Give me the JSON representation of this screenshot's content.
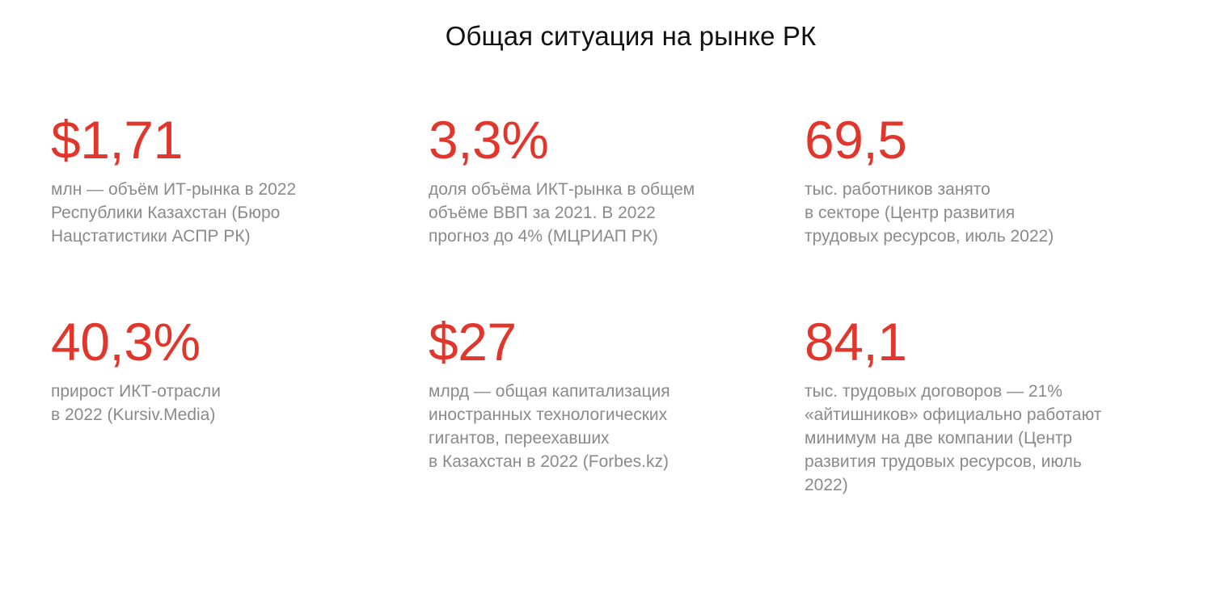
{
  "title": "Общая ситуация на рынке РК",
  "colors": {
    "accent": "#e0362c",
    "text": "#111111",
    "muted": "#8a8a8a",
    "background": "#ffffff"
  },
  "stats": [
    {
      "value": "$1,71",
      "description": "млн — объём ИТ-рынка в 2022\nРеспублики Казахстан (Бюро\nНацстатистики АСПР РК)"
    },
    {
      "value": "3,3%",
      "description": "доля объёма ИКТ-рынка в общем\nобъёме ВВП за 2021. В 2022\nпрогноз до 4% (МЦРИАП РК)"
    },
    {
      "value": "69,5",
      "description": "тыс. работников занято\nв секторе (Центр развития\nтрудовых ресурсов, июль 2022)"
    },
    {
      "value": "40,3%",
      "description": "прирост ИКТ-отрасли\nв 2022 (Kursiv.Media)"
    },
    {
      "value": "$27",
      "description": "млрд — общая капитализация\nиностранных технологических\nгигантов, переехавших\nв Казахстан в 2022 (Forbes.kz)"
    },
    {
      "value": "84,1",
      "description": "тыс. трудовых договоров — 21%\n«айтишников» официально работают\nминимум на две компании (Центр\nразвития трудовых ресурсов, июль\n2022)"
    }
  ]
}
